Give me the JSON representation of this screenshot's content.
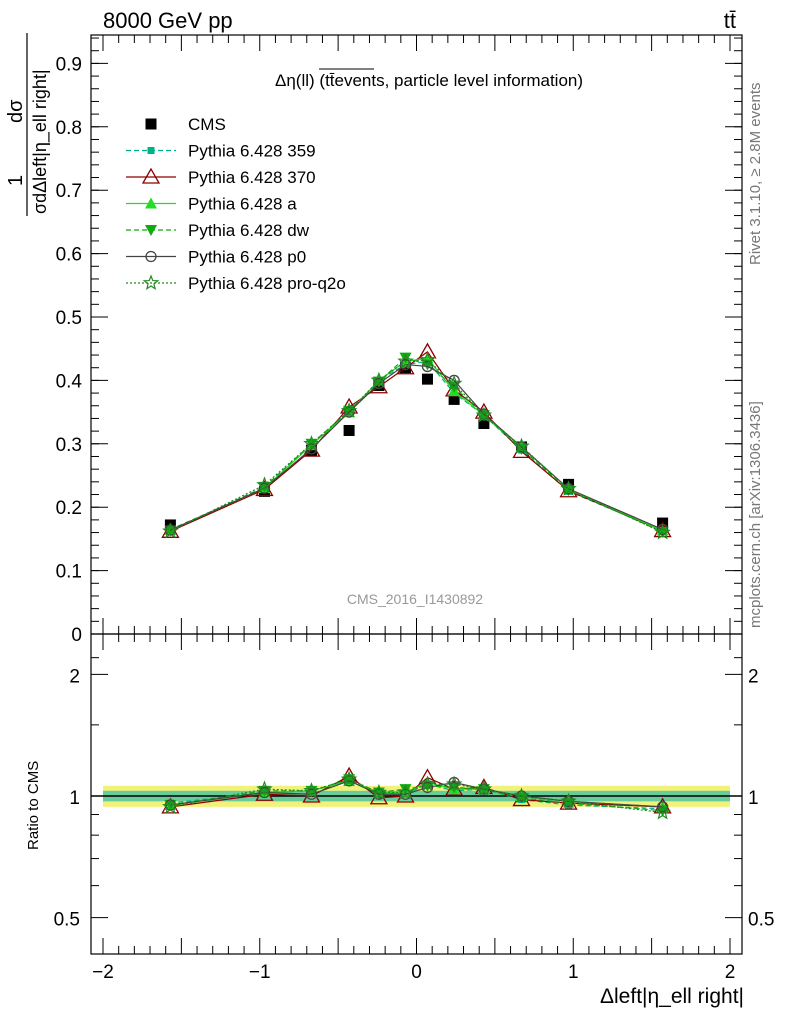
{
  "header": {
    "energy_label": "8000 GeV pp",
    "process_label": "tt̄"
  },
  "side_labels": {
    "rivet": "Rivet 3.1.10, ≥ 2.8M events",
    "mcplots": "mcplots.cern.ch [arXiv:1306.3436]"
  },
  "chart_data": [
    {
      "type": "scatter",
      "panel": "main",
      "title": "Δη(ll) (tt̄events, particle level information)",
      "watermark": "CMS_2016_I1430892",
      "ylabel_num": "1",
      "ylabel_frac_num": "dσ",
      "ylabel_frac_den": "σdΔleft|η_ell right|",
      "xlim": [
        -2,
        2
      ],
      "ylim": [
        0,
        0.95
      ],
      "yticks": [
        "0",
        "0.1",
        "0.2",
        "0.3",
        "0.4",
        "0.5",
        "0.6",
        "0.7",
        "0.8",
        "0.9"
      ],
      "x": [
        -1.57,
        -0.97,
        -0.67,
        -0.43,
        -0.24,
        -0.07,
        0.07,
        0.24,
        0.43,
        0.67,
        0.97,
        1.57
      ],
      "legend_position": "top-left",
      "series": [
        {
          "name": "CMS",
          "color": "#000000",
          "marker": "square",
          "line": "none",
          "values": [
            0.172,
            0.225,
            0.29,
            0.321,
            0.392,
            0.42,
            0.402,
            0.37,
            0.332,
            0.295,
            0.236,
            0.175
          ]
        },
        {
          "name": "Pythia 6.428 359",
          "color": "#00b386",
          "marker": "square-small",
          "line": "dashed",
          "values": [
            0.165,
            0.23,
            0.3,
            0.35,
            0.4,
            0.425,
            0.43,
            0.38,
            0.345,
            0.29,
            0.225,
            0.163
          ]
        },
        {
          "name": "Pythia 6.428 370",
          "color": "#8b0000",
          "marker": "triangle-open",
          "line": "solid",
          "values": [
            0.162,
            0.228,
            0.29,
            0.358,
            0.39,
            0.42,
            0.445,
            0.385,
            0.35,
            0.288,
            0.226,
            0.163
          ]
        },
        {
          "name": "Pythia 6.428 a",
          "color": "#22dd22",
          "marker": "triangle",
          "line": "solid",
          "values": [
            0.164,
            0.23,
            0.298,
            0.35,
            0.4,
            0.43,
            0.435,
            0.383,
            0.345,
            0.295,
            0.229,
            0.163
          ]
        },
        {
          "name": "Pythia 6.428 dw",
          "color": "#11aa11",
          "marker": "triangle-down",
          "line": "dashed",
          "values": [
            0.163,
            0.232,
            0.3,
            0.352,
            0.398,
            0.436,
            0.425,
            0.39,
            0.345,
            0.292,
            0.227,
            0.161
          ]
        },
        {
          "name": "Pythia 6.428 p0",
          "color": "#444444",
          "marker": "circle-open",
          "line": "solid",
          "values": [
            0.164,
            0.23,
            0.292,
            0.35,
            0.395,
            0.425,
            0.422,
            0.4,
            0.347,
            0.295,
            0.229,
            0.165
          ]
        },
        {
          "name": "Pythia 6.428 pro-q2o",
          "color": "#228b22",
          "marker": "star",
          "line": "dotted",
          "values": [
            0.162,
            0.235,
            0.3,
            0.352,
            0.4,
            0.43,
            0.432,
            0.395,
            0.345,
            0.296,
            0.229,
            0.16
          ]
        }
      ]
    },
    {
      "type": "scatter",
      "panel": "ratio",
      "ylabel": "Ratio to CMS",
      "xlabel": "Δleft|η_ell right|",
      "yscale": "log",
      "ylim": [
        0.4,
        2.4
      ],
      "yticks": [
        "0.5",
        "1",
        "2"
      ],
      "xticks": [
        "−2",
        "−1",
        "0",
        "1",
        "2"
      ],
      "band_inner": [
        0.97,
        1.03
      ],
      "band_outer": [
        0.94,
        1.06
      ],
      "band_colors": {
        "inner": "#66cc99",
        "outer": "#f2f27a"
      },
      "series": [
        {
          "name": "Pythia 6.428 359",
          "values": [
            0.96,
            1.02,
            1.03,
            1.09,
            1.02,
            1.01,
            1.07,
            1.03,
            1.04,
            0.98,
            0.95,
            0.93
          ]
        },
        {
          "name": "Pythia 6.428 370",
          "values": [
            0.94,
            1.01,
            1.0,
            1.12,
            0.99,
            1.0,
            1.11,
            1.04,
            1.05,
            0.98,
            0.96,
            0.94
          ]
        },
        {
          "name": "Pythia 6.428 a",
          "values": [
            0.95,
            1.02,
            1.03,
            1.09,
            1.02,
            1.02,
            1.08,
            1.04,
            1.04,
            1.0,
            0.97,
            0.94
          ]
        },
        {
          "name": "Pythia 6.428 dw",
          "values": [
            0.95,
            1.03,
            1.03,
            1.1,
            1.02,
            1.04,
            1.06,
            1.05,
            1.04,
            0.99,
            0.96,
            0.92
          ]
        },
        {
          "name": "Pythia 6.428 p0",
          "values": [
            0.95,
            1.02,
            1.01,
            1.09,
            1.01,
            1.01,
            1.05,
            1.08,
            1.04,
            1.0,
            0.97,
            0.94
          ]
        },
        {
          "name": "Pythia 6.428 pro-q2o",
          "values": [
            0.94,
            1.04,
            1.03,
            1.1,
            1.02,
            1.02,
            1.07,
            1.07,
            1.04,
            1.0,
            0.97,
            0.91
          ]
        }
      ]
    }
  ]
}
